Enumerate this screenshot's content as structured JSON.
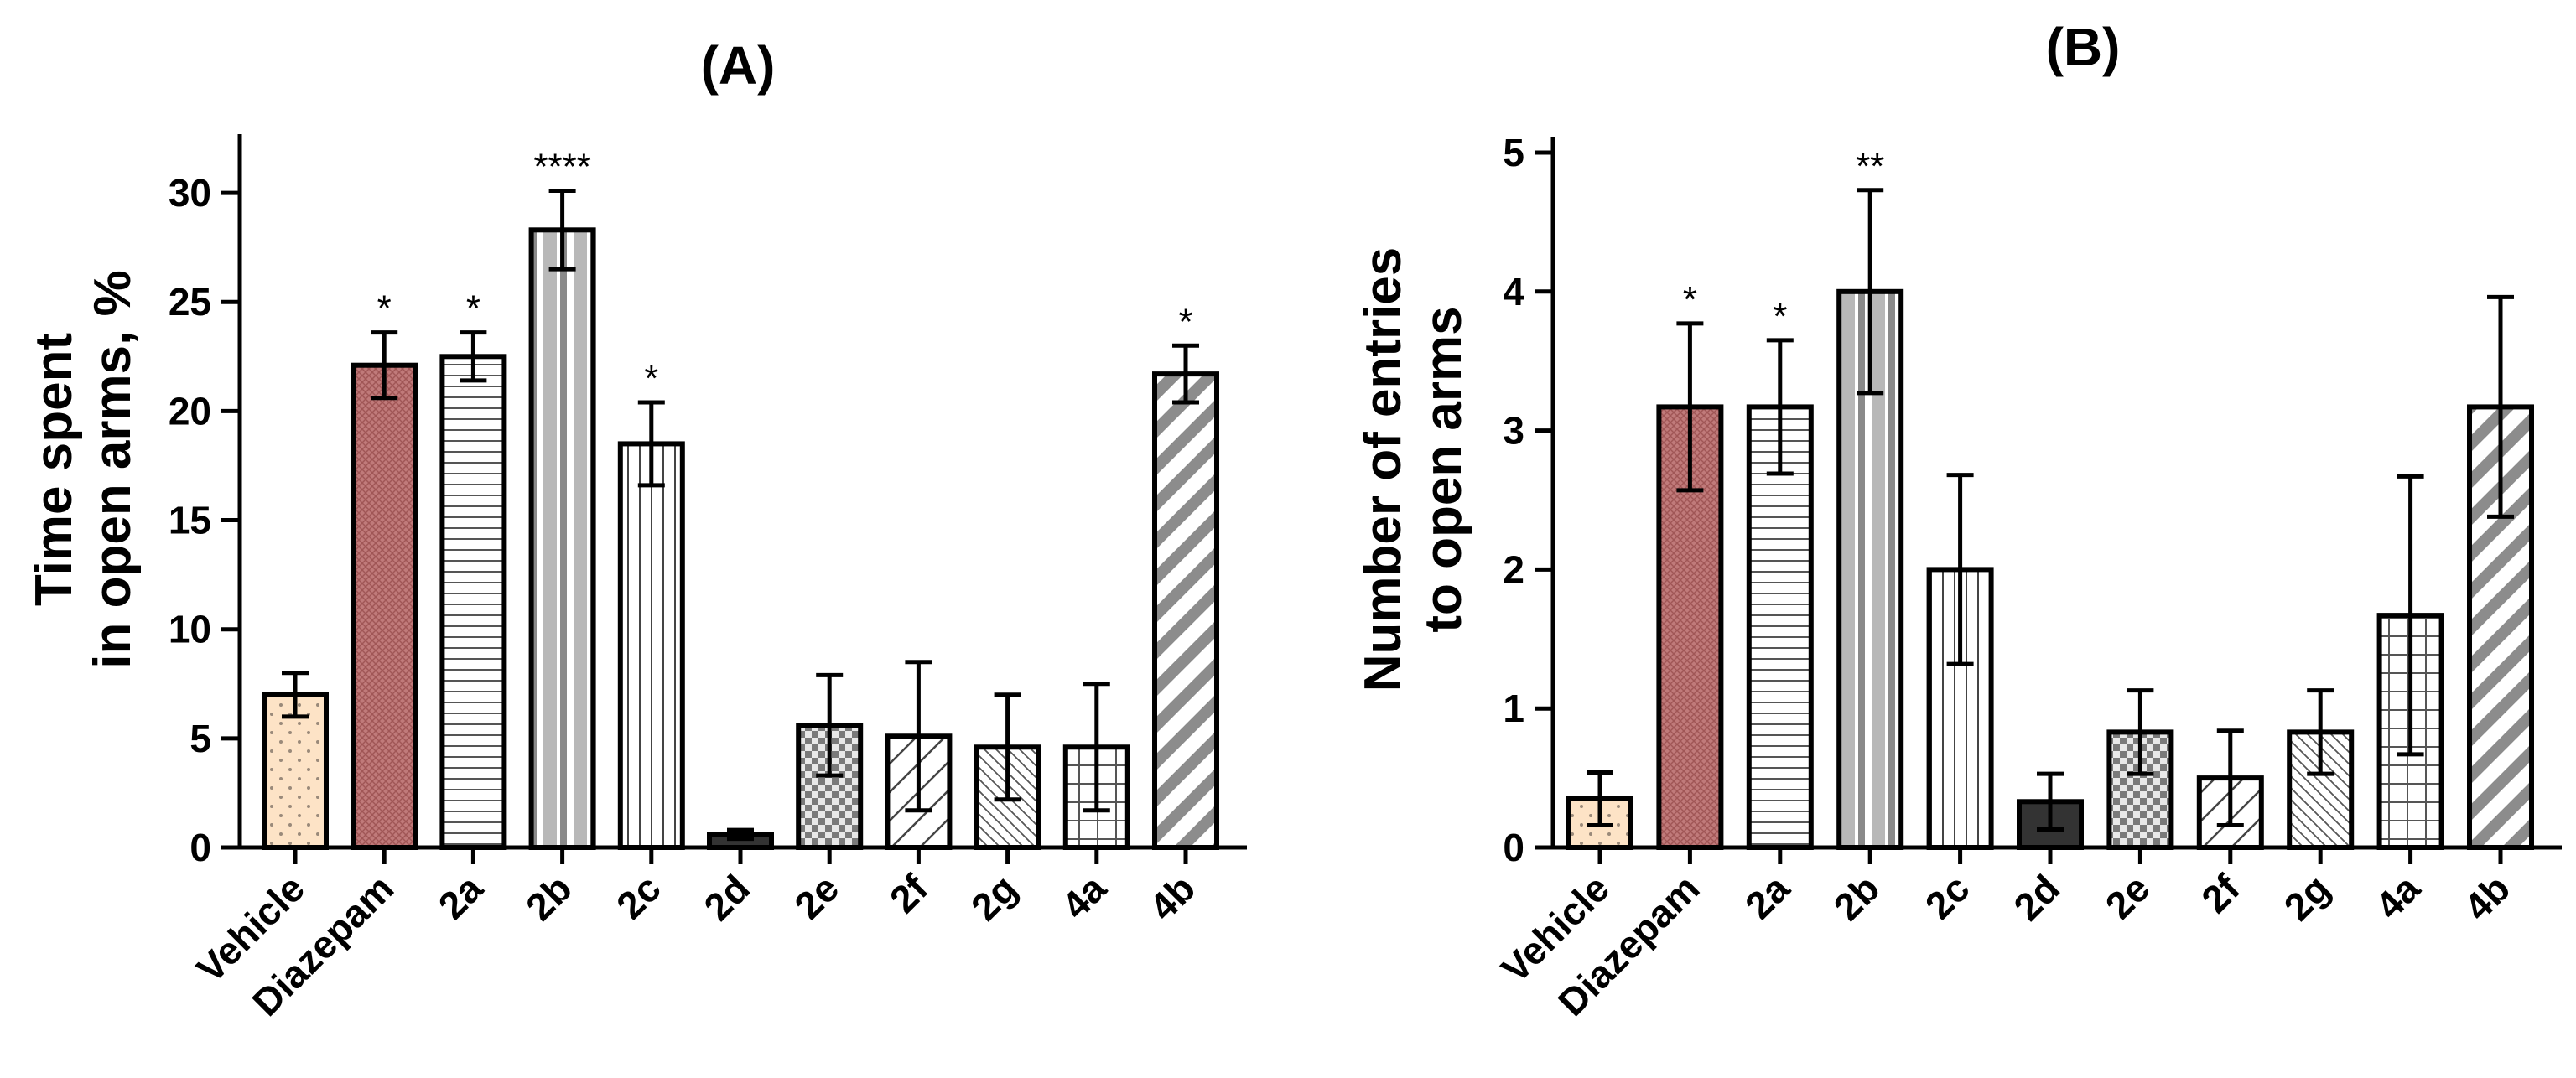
{
  "chart_data": [
    {
      "type": "bar",
      "title": "(A)",
      "xlabel": "",
      "ylabel_lines": [
        "Time spent",
        "in open arms, %"
      ],
      "categories": [
        "Vehicle",
        "Diazepam",
        "2a",
        "2b",
        "2c",
        "2d",
        "2e",
        "2f",
        "2g",
        "4a",
        "4b"
      ],
      "values": [
        7.0,
        22.1,
        22.5,
        28.3,
        18.5,
        0.6,
        5.6,
        5.1,
        4.6,
        4.6,
        21.7
      ],
      "errors": [
        1.0,
        1.5,
        1.1,
        1.8,
        1.9,
        0.2,
        2.3,
        3.4,
        2.4,
        2.9,
        1.3
      ],
      "significance": [
        "",
        "*",
        "*",
        "****",
        "*",
        "",
        "",
        "",
        "",
        "",
        "*"
      ],
      "ylim": [
        0,
        32
      ],
      "yticks": [
        0,
        5,
        10,
        15,
        20,
        25,
        30
      ],
      "grid": false
    },
    {
      "type": "bar",
      "title": "(B)",
      "xlabel": "",
      "ylabel_lines": [
        "Number of entries",
        "to open arms"
      ],
      "categories": [
        "Vehicle",
        "Diazepam",
        "2a",
        "2b",
        "2c",
        "2d",
        "2e",
        "2f",
        "2g",
        "4a",
        "4b"
      ],
      "values": [
        0.35,
        3.17,
        3.17,
        4.0,
        2.0,
        0.33,
        0.83,
        0.5,
        0.83,
        1.67,
        3.17
      ],
      "errors": [
        0.19,
        0.6,
        0.48,
        0.73,
        0.68,
        0.2,
        0.3,
        0.34,
        0.3,
        1.0,
        0.79
      ],
      "significance": [
        "",
        "*",
        "*",
        "**",
        "",
        "",
        "",
        "",
        "",
        "",
        ""
      ],
      "ylim": [
        0,
        5
      ],
      "yticks": [
        0,
        1,
        2,
        3,
        4,
        5
      ],
      "grid": false
    }
  ],
  "bar_styles": [
    {
      "fill": "#fde3c6",
      "pattern": "dots"
    },
    {
      "fill": "#c07a7a",
      "pattern": "crosshatch"
    },
    {
      "fill": "#ffffff",
      "pattern": "hlines"
    },
    {
      "fill": "#c8c8c8",
      "pattern": "vstripes"
    },
    {
      "fill": "#ffffff",
      "pattern": "vlines"
    },
    {
      "fill": "#444444",
      "pattern": "none"
    },
    {
      "fill": "#ffffff",
      "pattern": "checker"
    },
    {
      "fill": "#ffffff",
      "pattern": "diag"
    },
    {
      "fill": "#ffffff",
      "pattern": "diagthin"
    },
    {
      "fill": "#ffffff",
      "pattern": "grid"
    },
    {
      "fill": "#ffffff",
      "pattern": "widediag"
    }
  ]
}
